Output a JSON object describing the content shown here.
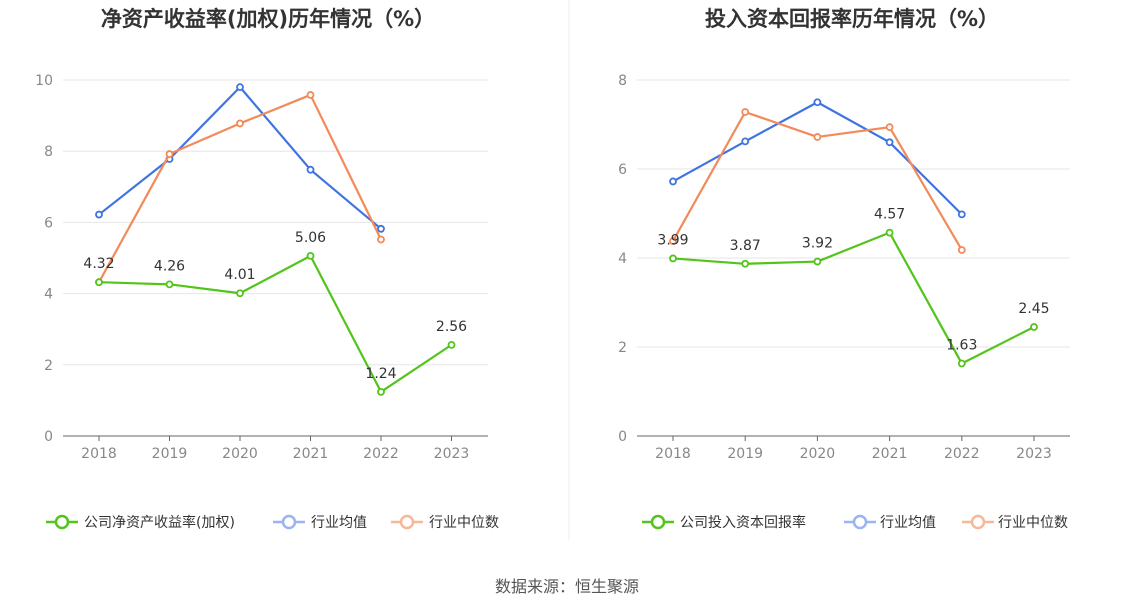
{
  "source_label": "数据来源：恒生聚源",
  "colors": {
    "company": "#52c41a",
    "industry_avg": "#3f74e0",
    "industry_median": "#f28a5a",
    "legend_avg": "#9ab5f0",
    "legend_median": "#f7b898",
    "grid": "#e6e6e6",
    "axis": "#666666"
  },
  "chart_data": [
    {
      "type": "line",
      "title": "净资产收益率(加权)历年情况（%）",
      "categories": [
        "2018",
        "2019",
        "2020",
        "2021",
        "2022",
        "2023"
      ],
      "ylim": [
        0,
        10
      ],
      "yticks": [
        "0",
        "2",
        "4",
        "6",
        "8",
        "10"
      ],
      "grid": true,
      "legend_position": "bottom",
      "series": [
        {
          "name": "公司净资产收益率(加权)",
          "values": [
            4.32,
            4.26,
            4.01,
            5.06,
            1.24,
            2.56
          ],
          "labels": [
            "4.32",
            "4.26",
            "4.01",
            "5.06",
            "1.24",
            "2.56"
          ]
        },
        {
          "name": "行业均值",
          "values": [
            6.22,
            7.78,
            9.8,
            7.48,
            5.82,
            null
          ]
        },
        {
          "name": "行业中位数",
          "values": [
            4.32,
            7.92,
            8.78,
            9.58,
            5.52,
            null
          ]
        }
      ]
    },
    {
      "type": "line",
      "title": "投入资本回报率历年情况（%）",
      "categories": [
        "2018",
        "2019",
        "2020",
        "2021",
        "2022",
        "2023"
      ],
      "ylim": [
        0,
        8
      ],
      "yticks": [
        "0",
        "2",
        "4",
        "6",
        "8"
      ],
      "grid": true,
      "legend_position": "bottom",
      "series": [
        {
          "name": "公司投入资本回报率",
          "values": [
            3.99,
            3.87,
            3.92,
            4.57,
            1.63,
            2.45
          ],
          "labels": [
            "3.99",
            "3.87",
            "3.92",
            "4.57",
            "1.63",
            "2.45"
          ]
        },
        {
          "name": "行业均值",
          "values": [
            5.72,
            6.62,
            7.5,
            6.6,
            4.98,
            null
          ]
        },
        {
          "name": "行业中位数",
          "values": [
            4.38,
            7.28,
            6.72,
            6.94,
            4.18,
            null
          ]
        }
      ]
    }
  ]
}
